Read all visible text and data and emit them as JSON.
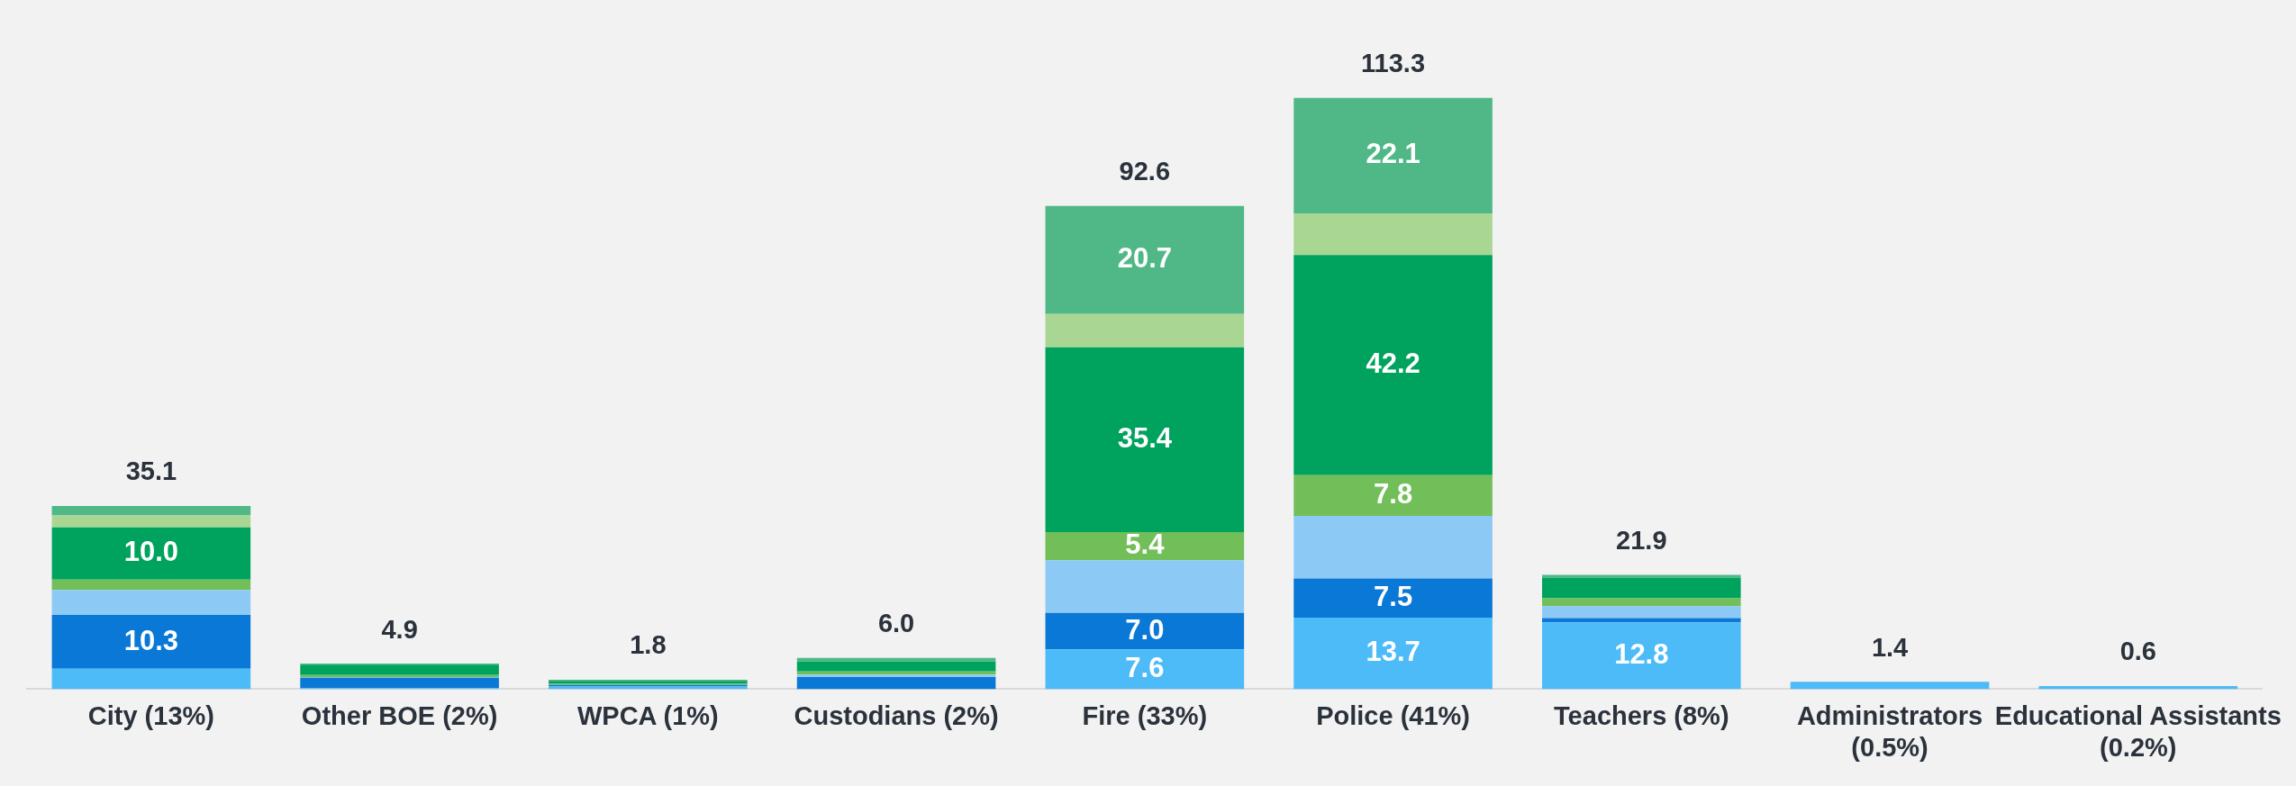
{
  "chart_data": {
    "type": "bar",
    "stacked": true,
    "legend": false,
    "grid": false,
    "categories": [
      "City (13%)",
      "Other BOE (2%)",
      "WPCA (1%)",
      "Custodians (2%)",
      "Fire (33%)",
      "Police (41%)",
      "Teachers (8%)",
      "Administrators (0.5%)",
      "Educational Assistants (0.2%)"
    ],
    "series": [
      {
        "color": "#4dbbf8",
        "values": [
          3.9,
          0.2,
          0.5,
          0,
          7.6,
          13.7,
          12.8,
          1.4,
          0.6
        ],
        "value_labels": [
          null,
          null,
          null,
          null,
          "7.6",
          "13.7",
          "12.8",
          null,
          null
        ]
      },
      {
        "color": "#0a78d6",
        "values": [
          10.3,
          2.0,
          0.3,
          2.3,
          7.0,
          7.5,
          0.8,
          0,
          0
        ],
        "value_labels": [
          "10.3",
          null,
          null,
          null,
          "7.0",
          "7.5",
          null,
          null,
          null
        ]
      },
      {
        "color": "#8cc9f5",
        "values": [
          4.8,
          0.1,
          null,
          0.5,
          10.1,
          12.0,
          2.3,
          0,
          0
        ]
      },
      {
        "color": "#72bf5a",
        "values": [
          2.0,
          0.4,
          0.2,
          0.6,
          5.4,
          7.8,
          1.5,
          0,
          0
        ],
        "value_labels": [
          null,
          null,
          null,
          null,
          "5.4",
          "7.8",
          null,
          null,
          null
        ]
      },
      {
        "color": "#00a35e",
        "values": [
          10.0,
          2.0,
          0.6,
          1.9,
          35.4,
          42.2,
          4.0,
          0,
          0
        ],
        "value_labels": [
          "10.0",
          null,
          null,
          null,
          "35.4",
          "42.2",
          null,
          null,
          null
        ]
      },
      {
        "color": "#a9d793",
        "values": [
          2.3,
          0,
          0,
          0,
          6.4,
          8.0,
          0,
          0,
          0
        ]
      },
      {
        "color": "#4fb886",
        "values": [
          1.8,
          0.2,
          0.2,
          0.7,
          20.7,
          22.1,
          0.5,
          0,
          0
        ],
        "value_labels": [
          null,
          null,
          null,
          null,
          "20.7",
          "22.1",
          null,
          null,
          null
        ]
      }
    ],
    "totals": [
      "35.1",
      "4.9",
      "1.8",
      "6.0",
      "92.6",
      "113.3",
      "21.9",
      "1.4",
      "0.6"
    ]
  }
}
